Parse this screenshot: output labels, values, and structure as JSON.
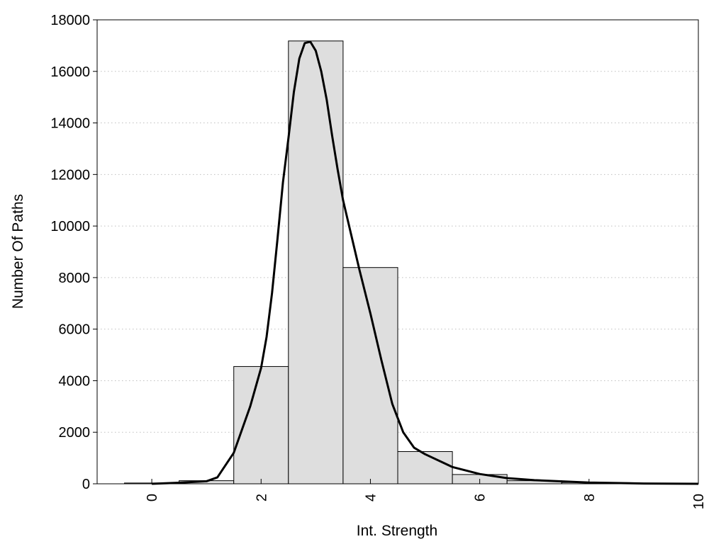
{
  "chart_data": {
    "type": "bar",
    "title": "",
    "xlabel": "Int. Strength",
    "ylabel": "Number Of Paths",
    "xlim": [
      -1,
      10
    ],
    "ylim": [
      0,
      18000
    ],
    "x_ticks": [
      0,
      2,
      4,
      6,
      8,
      10
    ],
    "y_ticks": [
      0,
      2000,
      4000,
      6000,
      8000,
      10000,
      12000,
      14000,
      16000,
      18000
    ],
    "grid": "horizontal dotted",
    "bar_color": "#dedede",
    "bin_width": 1,
    "bins": [
      {
        "center": 0,
        "value": 30
      },
      {
        "center": 1,
        "value": 120
      },
      {
        "center": 2,
        "value": 4550
      },
      {
        "center": 3,
        "value": 17180
      },
      {
        "center": 4,
        "value": 8390
      },
      {
        "center": 5,
        "value": 1250
      },
      {
        "center": 6,
        "value": 360
      },
      {
        "center": 7,
        "value": 120
      },
      {
        "center": 8,
        "value": 50
      },
      {
        "center": 9,
        "value": 20
      }
    ],
    "fit_curve": {
      "x": [
        0,
        0.5,
        1,
        1.2,
        1.5,
        1.8,
        2,
        2.1,
        2.2,
        2.3,
        2.4,
        2.5,
        2.6,
        2.7,
        2.8,
        2.9,
        3,
        3.1,
        3.2,
        3.3,
        3.4,
        3.5,
        3.6,
        3.8,
        4,
        4.2,
        4.4,
        4.6,
        4.8,
        5,
        5.5,
        6,
        6.5,
        7,
        8,
        9,
        10
      ],
      "y": [
        0,
        40,
        100,
        250,
        1200,
        3000,
        4500,
        5700,
        7400,
        9500,
        11700,
        13400,
        15200,
        16500,
        17100,
        17150,
        16800,
        16000,
        14900,
        13500,
        12200,
        11000,
        10100,
        8300,
        6600,
        4800,
        3100,
        2000,
        1400,
        1150,
        650,
        380,
        220,
        140,
        50,
        10,
        0
      ]
    }
  }
}
